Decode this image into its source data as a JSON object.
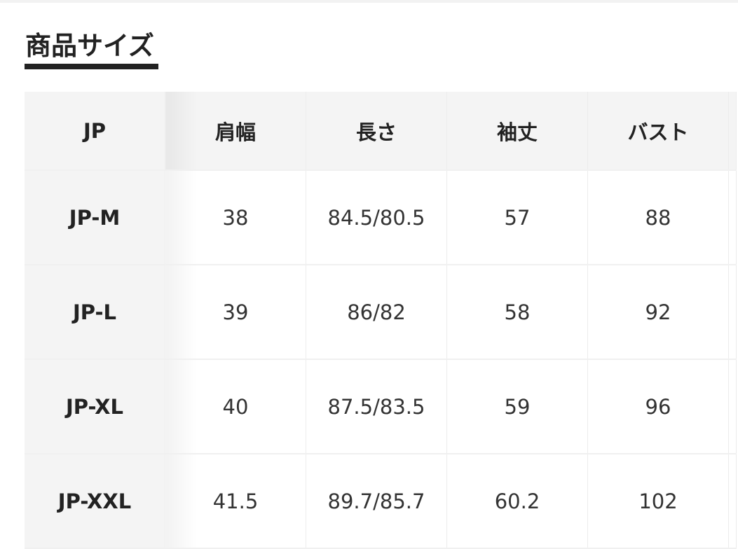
{
  "section": {
    "title": "商品サイズ"
  },
  "size_table": {
    "headers": [
      "JP",
      "肩幅",
      "長さ",
      "袖丈",
      "バスト"
    ],
    "rows": [
      [
        "JP-M",
        "38",
        "84.5/80.5",
        "57",
        "88"
      ],
      [
        "JP-L",
        "39",
        "86/82",
        "58",
        "92"
      ],
      [
        "JP-XL",
        "40",
        "87.5/83.5",
        "59",
        "96"
      ],
      [
        "JP-XXL",
        "41.5",
        "89.7/85.7",
        "60.2",
        "102"
      ]
    ]
  }
}
